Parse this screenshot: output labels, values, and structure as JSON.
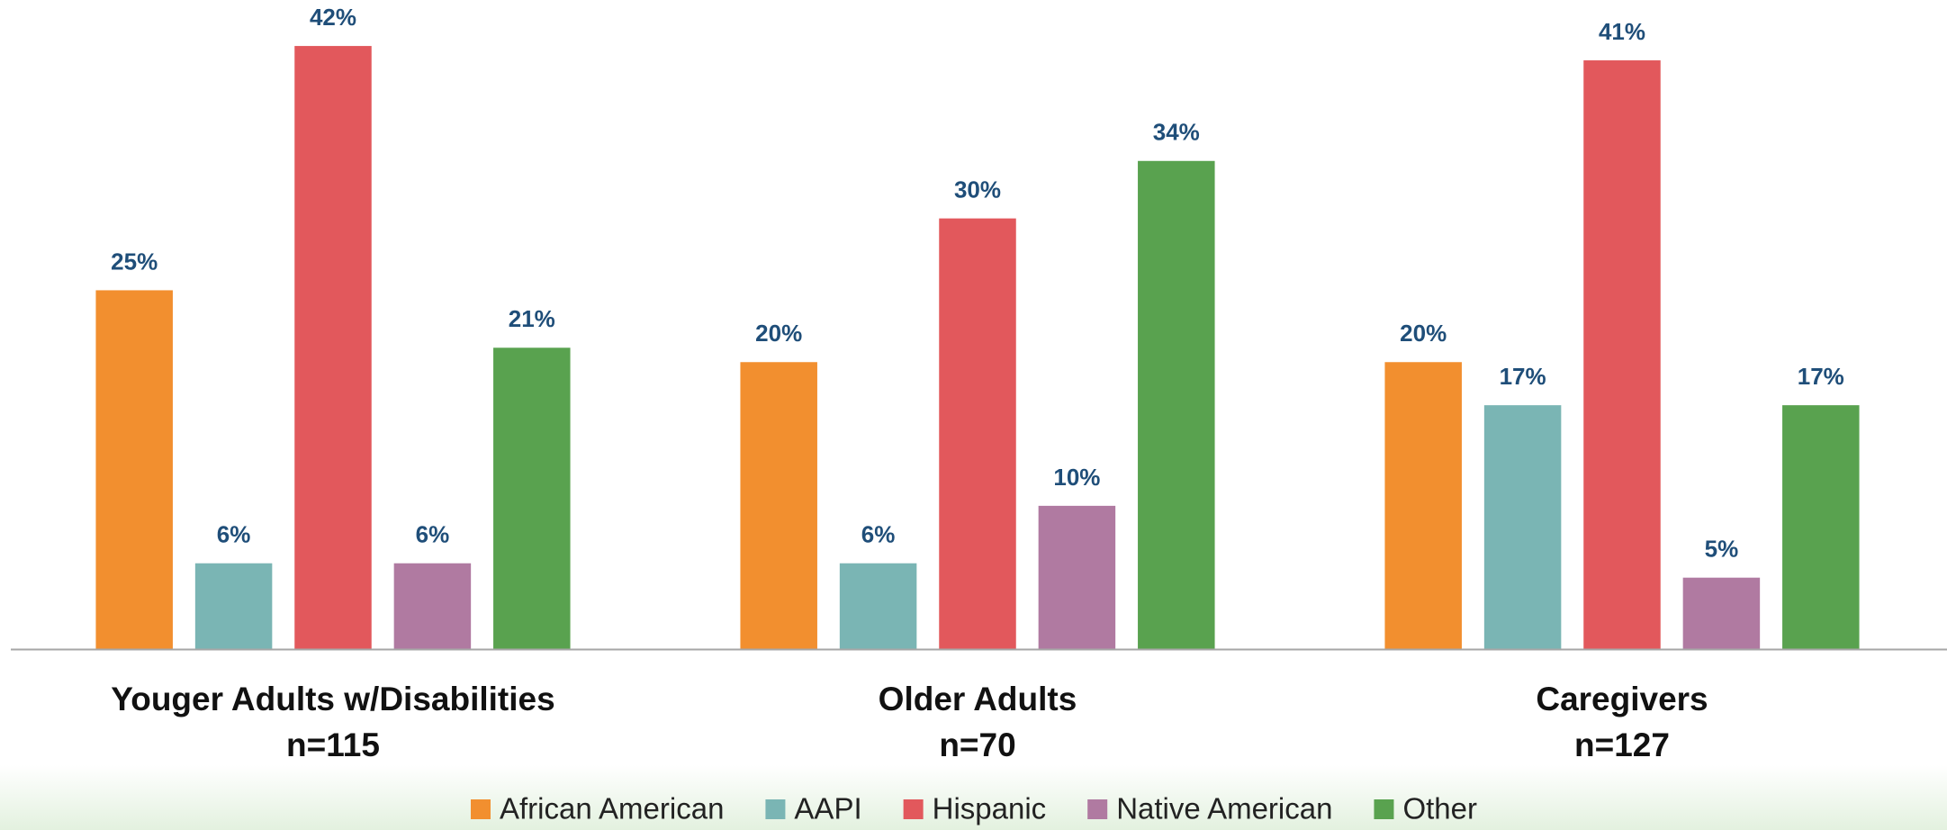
{
  "chart_data": {
    "type": "grouped_bar",
    "categories": [
      [
        "Youger Adults w/Disabilities",
        "n=115"
      ],
      [
        "Older Adults",
        "n=70"
      ],
      [
        "Caregivers",
        "n=127"
      ]
    ],
    "series": [
      {
        "name": "African American",
        "color": "#f28f2f",
        "values": [
          25,
          20,
          20
        ],
        "value_labels": [
          "25%",
          "20%",
          "20%"
        ]
      },
      {
        "name": "AAPI",
        "color": "#7ab5b4",
        "values": [
          6,
          6,
          17
        ],
        "value_labels": [
          "6%",
          "6%",
          "17%"
        ]
      },
      {
        "name": "Hispanic",
        "color": "#e2585c",
        "values": [
          42,
          30,
          41
        ],
        "value_labels": [
          "42%",
          "30%",
          "41%"
        ]
      },
      {
        "name": "Native American",
        "color": "#b07aa1",
        "values": [
          6,
          10,
          5
        ],
        "value_labels": [
          "6%",
          "10%",
          "5%"
        ]
      },
      {
        "name": "Other",
        "color": "#59a24f",
        "values": [
          21,
          34,
          17
        ],
        "value_labels": [
          "21%",
          "34%",
          "17%"
        ]
      }
    ],
    "ylim": [
      0,
      45.2
    ],
    "legend": "bottom"
  }
}
